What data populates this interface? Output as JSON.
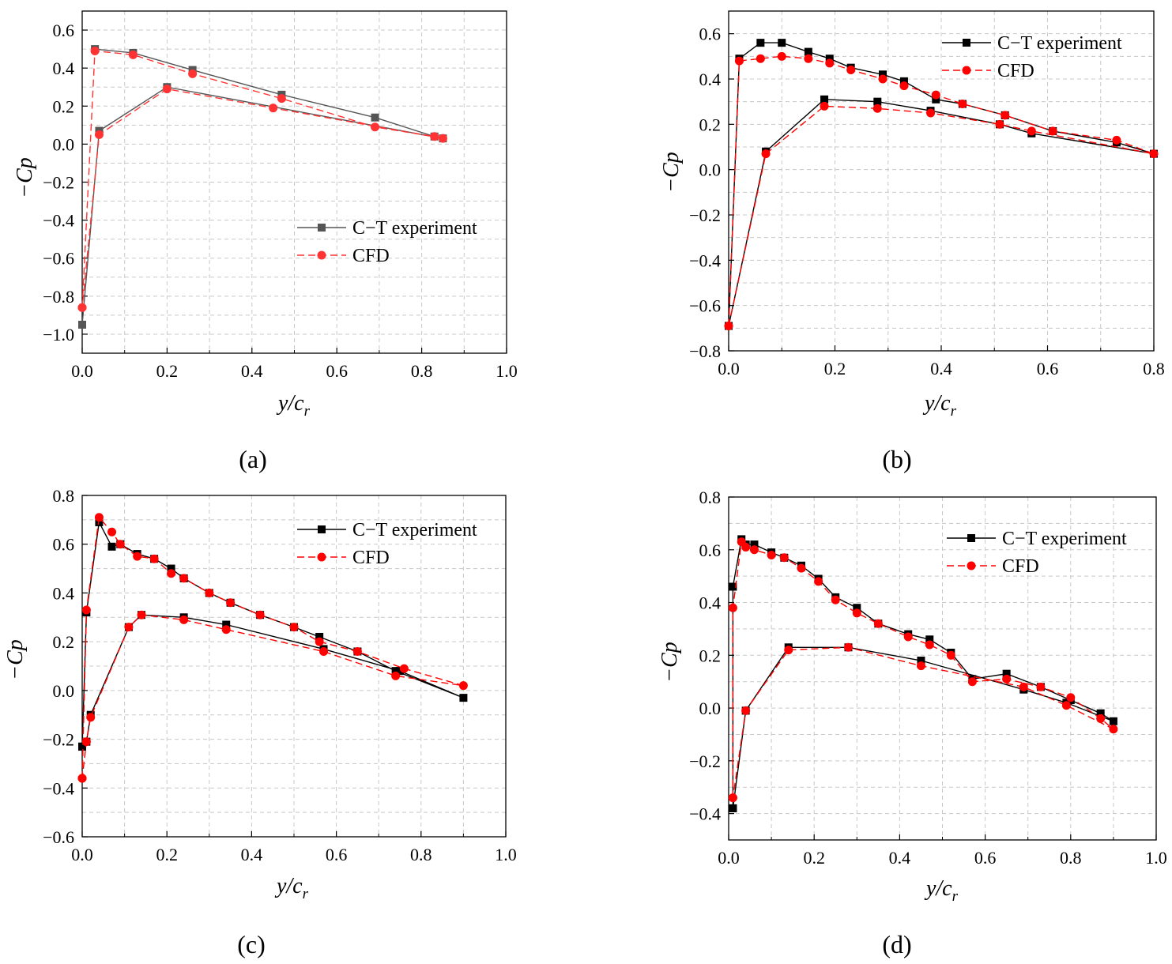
{
  "chart_data": [
    {
      "type": "line",
      "panel": "(a)",
      "xlabel": "y/c",
      "xlabel_sub": "r",
      "ylabel": "−Cp",
      "xlim": [
        0,
        1.0
      ],
      "ylim": [
        -1.1,
        0.7
      ],
      "xticks": [
        0.0,
        0.2,
        0.4,
        0.6,
        0.8,
        1.0
      ],
      "xtick_labels": [
        "0.0",
        "0.2",
        "0.4",
        "0.6",
        "0.8",
        "1.0"
      ],
      "yticks": [
        -1.0,
        -0.8,
        -0.6,
        -0.4,
        -0.2,
        0.0,
        0.2,
        0.4,
        0.6
      ],
      "ytick_labels": [
        "−1.0",
        "−0.8",
        "−0.6",
        "−0.4",
        "−0.2",
        "0.0",
        "0.2",
        "0.4",
        "0.6"
      ],
      "legend_position": "center-right",
      "series": [
        {
          "name": "C−T experiment",
          "color": "#555555",
          "marker": "square",
          "dash": "solid",
          "x": [
            0.03,
            0.12,
            0.26,
            0.47,
            0.69,
            0.83,
            0.85,
            0.2,
            0.04,
            0.0
          ],
          "y": [
            0.5,
            0.48,
            0.39,
            0.26,
            0.14,
            0.04,
            0.03,
            0.3,
            0.07,
            -0.95
          ]
        },
        {
          "name": "CFD",
          "color": "#ff3333",
          "marker": "circle",
          "dash": "dashed",
          "x": [
            0.0,
            0.03,
            0.12,
            0.26,
            0.47,
            0.69,
            0.83,
            0.85,
            0.45,
            0.2,
            0.04,
            0.0
          ],
          "y": [
            -0.86,
            0.49,
            0.47,
            0.37,
            0.24,
            0.09,
            0.04,
            0.03,
            0.19,
            0.29,
            0.05,
            -0.86
          ]
        }
      ]
    },
    {
      "type": "line",
      "panel": "(b)",
      "xlabel": "y/c",
      "xlabel_sub": "r",
      "ylabel": "−Cp",
      "xlim": [
        0,
        0.8
      ],
      "ylim": [
        -0.8,
        0.7
      ],
      "xticks": [
        0.0,
        0.2,
        0.4,
        0.6,
        0.8
      ],
      "xtick_labels": [
        "0.0",
        "0.2",
        "0.4",
        "0.6",
        "0.8"
      ],
      "yticks": [
        -0.8,
        -0.6,
        -0.4,
        -0.2,
        0.0,
        0.2,
        0.4,
        0.6
      ],
      "ytick_labels": [
        "−0.8",
        "−0.6",
        "−0.4",
        "−0.2",
        "0.0",
        "0.2",
        "0.4",
        "0.6"
      ],
      "legend_position": "top-right",
      "series": [
        {
          "name": "C−T experiment",
          "color": "#000000",
          "marker": "square",
          "dash": "solid",
          "x": [
            0.0,
            0.02,
            0.06,
            0.1,
            0.15,
            0.19,
            0.23,
            0.29,
            0.33,
            0.39,
            0.44,
            0.52,
            0.61,
            0.73,
            0.8,
            0.57,
            0.51,
            0.38,
            0.28,
            0.18,
            0.07,
            0.0
          ],
          "y": [
            -0.69,
            0.49,
            0.56,
            0.56,
            0.52,
            0.49,
            0.45,
            0.42,
            0.39,
            0.31,
            0.29,
            0.24,
            0.17,
            0.12,
            0.07,
            0.16,
            0.2,
            0.26,
            0.3,
            0.31,
            0.08,
            -0.69
          ]
        },
        {
          "name": "CFD",
          "color": "#ff0000",
          "marker": "circle",
          "dash": "dashed",
          "x": [
            0.0,
            0.02,
            0.06,
            0.1,
            0.15,
            0.19,
            0.23,
            0.29,
            0.33,
            0.39,
            0.44,
            0.52,
            0.61,
            0.73,
            0.8,
            0.57,
            0.51,
            0.38,
            0.28,
            0.18,
            0.07,
            0.0
          ],
          "y": [
            -0.69,
            0.48,
            0.49,
            0.5,
            0.49,
            0.47,
            0.44,
            0.4,
            0.37,
            0.33,
            0.29,
            0.24,
            0.17,
            0.13,
            0.07,
            0.17,
            0.2,
            0.25,
            0.27,
            0.28,
            0.07,
            -0.69
          ]
        }
      ]
    },
    {
      "type": "line",
      "panel": "(c)",
      "xlabel": "y/c",
      "xlabel_sub": "r",
      "ylabel": "−Cp",
      "xlim": [
        0,
        1.0
      ],
      "ylim": [
        -0.6,
        0.8
      ],
      "xticks": [
        0.0,
        0.2,
        0.4,
        0.6,
        0.8,
        1.0
      ],
      "xtick_labels": [
        "0.0",
        "0.2",
        "0.4",
        "0.6",
        "0.8",
        "1.0"
      ],
      "yticks": [
        -0.6,
        -0.4,
        -0.2,
        0.0,
        0.2,
        0.4,
        0.6,
        0.8
      ],
      "ytick_labels": [
        "−0.6",
        "−0.4",
        "−0.2",
        "0.0",
        "0.2",
        "0.4",
        "0.6",
        "0.8"
      ],
      "legend_position": "top-right",
      "series": [
        {
          "name": "C−T experiment",
          "color": "#000000",
          "marker": "square",
          "dash": "solid",
          "x": [
            0.0,
            0.01,
            0.04,
            0.07,
            0.09,
            0.13,
            0.17,
            0.21,
            0.24,
            0.3,
            0.35,
            0.42,
            0.5,
            0.56,
            0.65,
            0.74,
            0.9,
            0.75,
            0.57,
            0.34,
            0.24,
            0.14,
            0.11,
            0.02,
            0.01,
            0.0
          ],
          "y": [
            -0.23,
            0.32,
            0.69,
            0.59,
            0.6,
            0.56,
            0.54,
            0.5,
            0.46,
            0.4,
            0.36,
            0.31,
            0.26,
            0.22,
            0.16,
            0.08,
            -0.03,
            0.08,
            0.17,
            0.27,
            0.3,
            0.31,
            0.26,
            -0.1,
            -0.21,
            -0.23
          ]
        },
        {
          "name": "CFD",
          "color": "#ff0000",
          "marker": "circle",
          "dash": "dashed",
          "x": [
            0.0,
            0.01,
            0.04,
            0.07,
            0.09,
            0.13,
            0.17,
            0.21,
            0.24,
            0.3,
            0.35,
            0.42,
            0.5,
            0.56,
            0.65,
            0.76,
            0.9,
            0.74,
            0.57,
            0.34,
            0.24,
            0.14,
            0.11,
            0.02,
            0.01,
            0.0
          ],
          "y": [
            -0.36,
            0.33,
            0.71,
            0.65,
            0.6,
            0.55,
            0.54,
            0.48,
            0.46,
            0.4,
            0.36,
            0.31,
            0.26,
            0.2,
            0.16,
            0.09,
            0.02,
            0.06,
            0.16,
            0.25,
            0.29,
            0.31,
            0.26,
            -0.11,
            -0.21,
            -0.36
          ]
        }
      ]
    },
    {
      "type": "line",
      "panel": "(d)",
      "xlabel": "y/c",
      "xlabel_sub": "r",
      "ylabel": "−Cp",
      "xlim": [
        0,
        1.0
      ],
      "ylim": [
        -0.5,
        0.8
      ],
      "xticks": [
        0.0,
        0.2,
        0.4,
        0.6,
        0.8,
        1.0
      ],
      "xtick_labels": [
        "0.0",
        "0.2",
        "0.4",
        "0.6",
        "0.8",
        "1.0"
      ],
      "yticks": [
        -0.4,
        -0.2,
        0.0,
        0.2,
        0.4,
        0.6,
        0.8
      ],
      "ytick_labels": [
        "−0.4",
        "−0.2",
        "0.0",
        "0.2",
        "0.4",
        "0.6",
        "0.8"
      ],
      "legend_position": "top-right",
      "series": [
        {
          "name": "C−T experiment",
          "color": "#000000",
          "marker": "square",
          "dash": "solid",
          "x": [
            0.01,
            0.01,
            0.03,
            0.04,
            0.06,
            0.1,
            0.13,
            0.17,
            0.21,
            0.25,
            0.3,
            0.35,
            0.42,
            0.47,
            0.52,
            0.57,
            0.65,
            0.73,
            0.8,
            0.87,
            0.9,
            0.79,
            0.69,
            0.45,
            0.28,
            0.14,
            0.04,
            0.01
          ],
          "y": [
            -0.38,
            0.46,
            0.64,
            0.62,
            0.62,
            0.59,
            0.57,
            0.54,
            0.49,
            0.42,
            0.38,
            0.32,
            0.28,
            0.26,
            0.21,
            0.11,
            0.13,
            0.08,
            0.03,
            -0.02,
            -0.05,
            0.02,
            0.07,
            0.18,
            0.23,
            0.23,
            -0.01,
            -0.38
          ]
        },
        {
          "name": "CFD",
          "color": "#ff0000",
          "marker": "circle",
          "dash": "dashed",
          "x": [
            0.01,
            0.01,
            0.03,
            0.04,
            0.06,
            0.1,
            0.13,
            0.17,
            0.21,
            0.25,
            0.3,
            0.35,
            0.42,
            0.47,
            0.52,
            0.57,
            0.65,
            0.73,
            0.8,
            0.87,
            0.9,
            0.79,
            0.69,
            0.45,
            0.28,
            0.14,
            0.04,
            0.01
          ],
          "y": [
            -0.34,
            0.38,
            0.63,
            0.61,
            0.6,
            0.58,
            0.57,
            0.53,
            0.48,
            0.41,
            0.36,
            0.32,
            0.27,
            0.24,
            0.2,
            0.1,
            0.11,
            0.08,
            0.04,
            -0.04,
            -0.08,
            0.01,
            0.08,
            0.16,
            0.23,
            0.22,
            -0.01,
            -0.34
          ]
        }
      ]
    }
  ]
}
